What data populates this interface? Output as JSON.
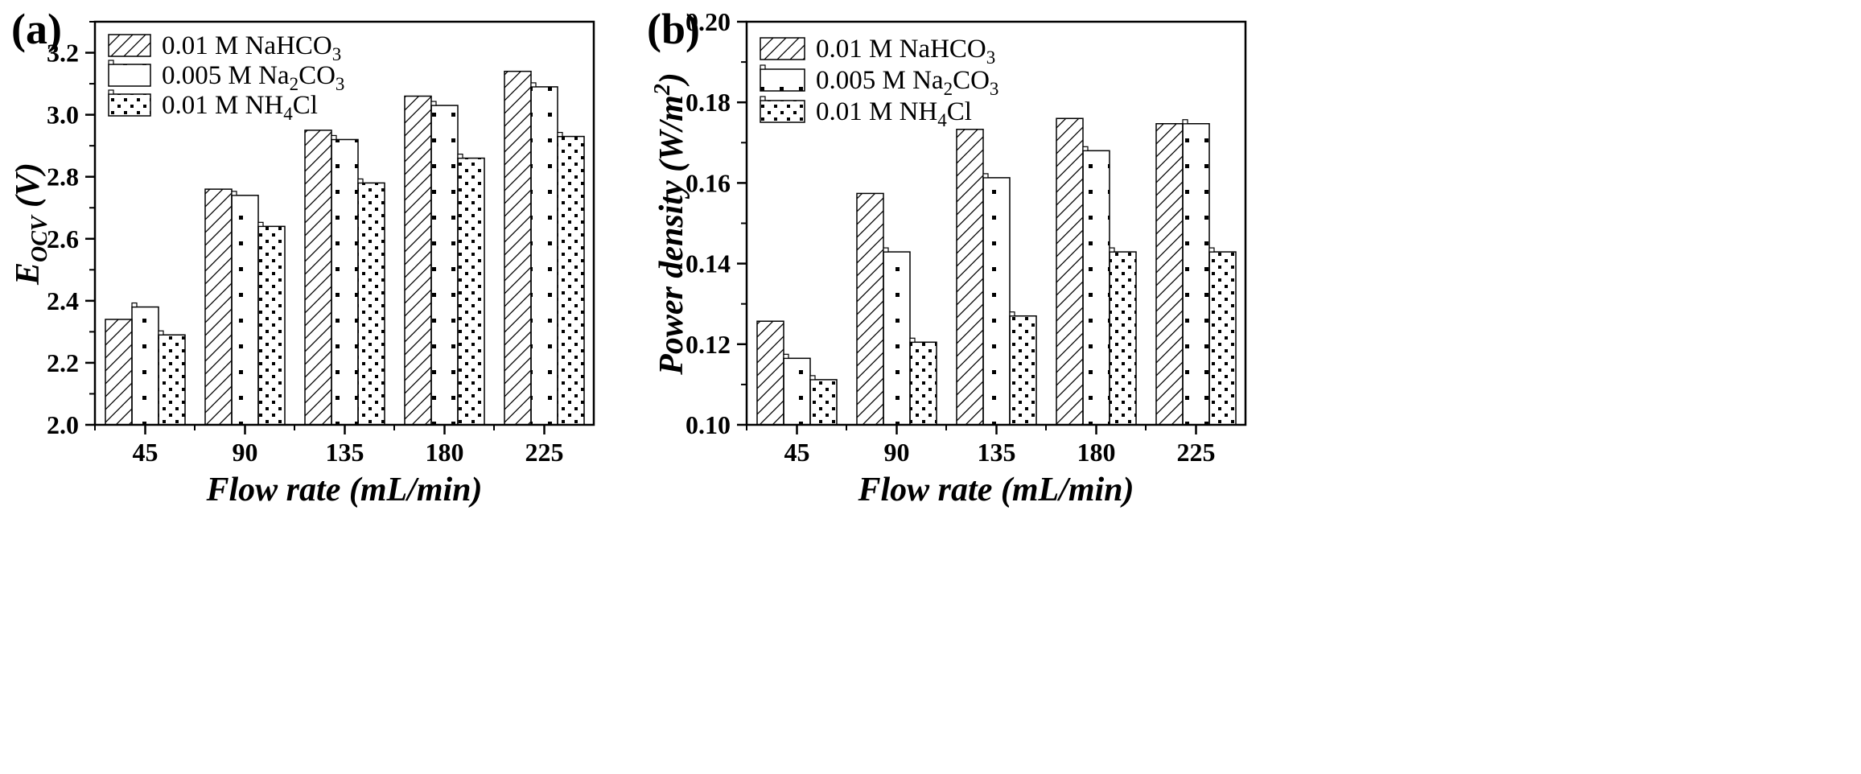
{
  "chart_data": [
    {
      "type": "bar",
      "panel_label": "(a)",
      "categories": [
        "45",
        "90",
        "135",
        "180",
        "225"
      ],
      "xlabel": "Flow rate (mL/min)",
      "ylabel_main": "E",
      "ylabel_sub": "OCV",
      "ylabel_tail": " (V)",
      "ylim": [
        2.0,
        3.3
      ],
      "yticks": [
        2.0,
        2.2,
        2.4,
        2.6,
        2.8,
        3.0,
        3.2
      ],
      "ytick_labels": [
        "2.0",
        "2.2",
        "2.4",
        "2.6",
        "2.8",
        "3.0",
        "3.2"
      ],
      "legend_position": "top-left",
      "series": [
        {
          "name": "0.01 M NaHCO3",
          "label_main": "0.01 M NaHCO",
          "label_sub": "3",
          "label_tail": "",
          "pattern": "hatch",
          "values": [
            2.34,
            2.76,
            2.95,
            3.06,
            3.14
          ]
        },
        {
          "name": "0.005 M Na2CO3",
          "label_main": "0.005 M Na",
          "label_sub": "2",
          "label_tail": "CO",
          "label_sub2": "3",
          "pattern": "sparse-dots",
          "values": [
            2.38,
            2.74,
            2.92,
            3.03,
            3.09
          ]
        },
        {
          "name": "0.01 M NH4Cl",
          "label_main": "0.01 M NH",
          "label_sub": "4",
          "label_tail": "Cl",
          "pattern": "dense-dots",
          "values": [
            2.29,
            2.64,
            2.78,
            2.86,
            2.93
          ]
        }
      ]
    },
    {
      "type": "bar",
      "panel_label": "(b)",
      "categories": [
        "45",
        "90",
        "135",
        "180",
        "225"
      ],
      "xlabel": "Flow rate (mL/min)",
      "ylabel_main": "Power density (W/m",
      "ylabel_sup": "2",
      "ylabel_tail": ")",
      "ylim": [
        0.1,
        0.2
      ],
      "yticks": [
        0.1,
        0.12,
        0.14,
        0.16,
        0.18,
        0.2
      ],
      "ytick_labels": [
        "0.10",
        "0.12",
        "0.14",
        "0.16",
        "0.18",
        "0.20"
      ],
      "legend_position": "top-left",
      "series": [
        {
          "name": "0.01 M NaHCO3",
          "label_main": "0.01 M NaHCO",
          "label_sub": "3",
          "label_tail": "",
          "pattern": "hatch",
          "values": [
            0.1257,
            0.1574,
            0.1733,
            0.176,
            0.1747
          ]
        },
        {
          "name": "0.005 M Na2CO3",
          "label_main": "0.005 M Na",
          "label_sub": "2",
          "label_tail": "CO",
          "label_sub2": "3",
          "pattern": "sparse-dots",
          "values": [
            0.1165,
            0.1429,
            0.1613,
            0.168,
            0.1747
          ]
        },
        {
          "name": "0.01 M NH4Cl",
          "label_main": "0.01 M NH",
          "label_sub": "4",
          "label_tail": "Cl",
          "pattern": "dense-dots",
          "values": [
            0.1112,
            0.1205,
            0.127,
            0.1429,
            0.1429
          ]
        }
      ]
    }
  ]
}
